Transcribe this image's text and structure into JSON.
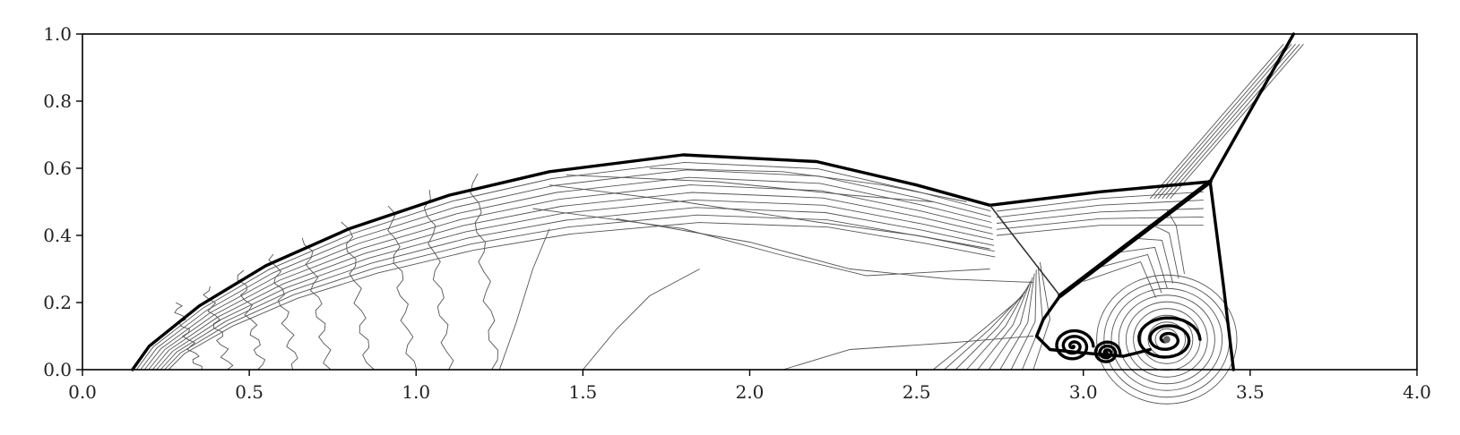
{
  "chart_data": {
    "type": "contour",
    "title": "",
    "xlabel": "",
    "ylabel": "",
    "xlim": [
      0.0,
      4.0
    ],
    "ylim": [
      0.0,
      1.0
    ],
    "x_ticks": [
      0.0,
      0.5,
      1.0,
      1.5,
      2.0,
      2.5,
      3.0,
      3.5,
      4.0
    ],
    "y_ticks": [
      0.0,
      0.2,
      0.4,
      0.6,
      0.8,
      1.0
    ],
    "x_tick_labels": [
      "0.0",
      "0.5",
      "1.0",
      "1.5",
      "2.0",
      "2.5",
      "3.0",
      "3.5",
      "4.0"
    ],
    "y_tick_labels": [
      "0.0",
      "0.2",
      "0.4",
      "0.6",
      "0.8",
      "1.0"
    ],
    "grid": false,
    "colors": {
      "contour": "#555555",
      "shock": "#000000",
      "frame": "#000000"
    },
    "features": {
      "bow_shock": [
        [
          0.15,
          0.0
        ],
        [
          0.2,
          0.07
        ],
        [
          0.35,
          0.19
        ],
        [
          0.55,
          0.31
        ],
        [
          0.8,
          0.42
        ],
        [
          1.1,
          0.52
        ],
        [
          1.4,
          0.59
        ],
        [
          1.8,
          0.64
        ],
        [
          2.2,
          0.62
        ],
        [
          2.5,
          0.55
        ],
        [
          2.72,
          0.49
        ]
      ],
      "triple_point_1": [
        2.72,
        0.49
      ],
      "triple_point_2": [
        3.38,
        0.56
      ],
      "mach_stem_upper": [
        [
          2.72,
          0.49
        ],
        [
          3.05,
          0.53
        ],
        [
          3.38,
          0.56
        ]
      ],
      "reflected_shock_1": [
        [
          2.72,
          0.49
        ],
        [
          2.93,
          0.22
        ]
      ],
      "slip_line": [
        [
          2.93,
          0.22
        ],
        [
          3.38,
          0.56
        ]
      ],
      "oblique_shock": [
        [
          3.38,
          0.56
        ],
        [
          3.63,
          1.0
        ]
      ],
      "vertical_shock": [
        [
          3.38,
          0.56
        ],
        [
          3.42,
          0.25
        ],
        [
          3.45,
          0.0
        ]
      ],
      "vortex_center": [
        3.25,
        0.09
      ],
      "thin_band": [
        [
          3.35,
          0.56
        ],
        [
          3.62,
          0.97
        ]
      ]
    }
  }
}
